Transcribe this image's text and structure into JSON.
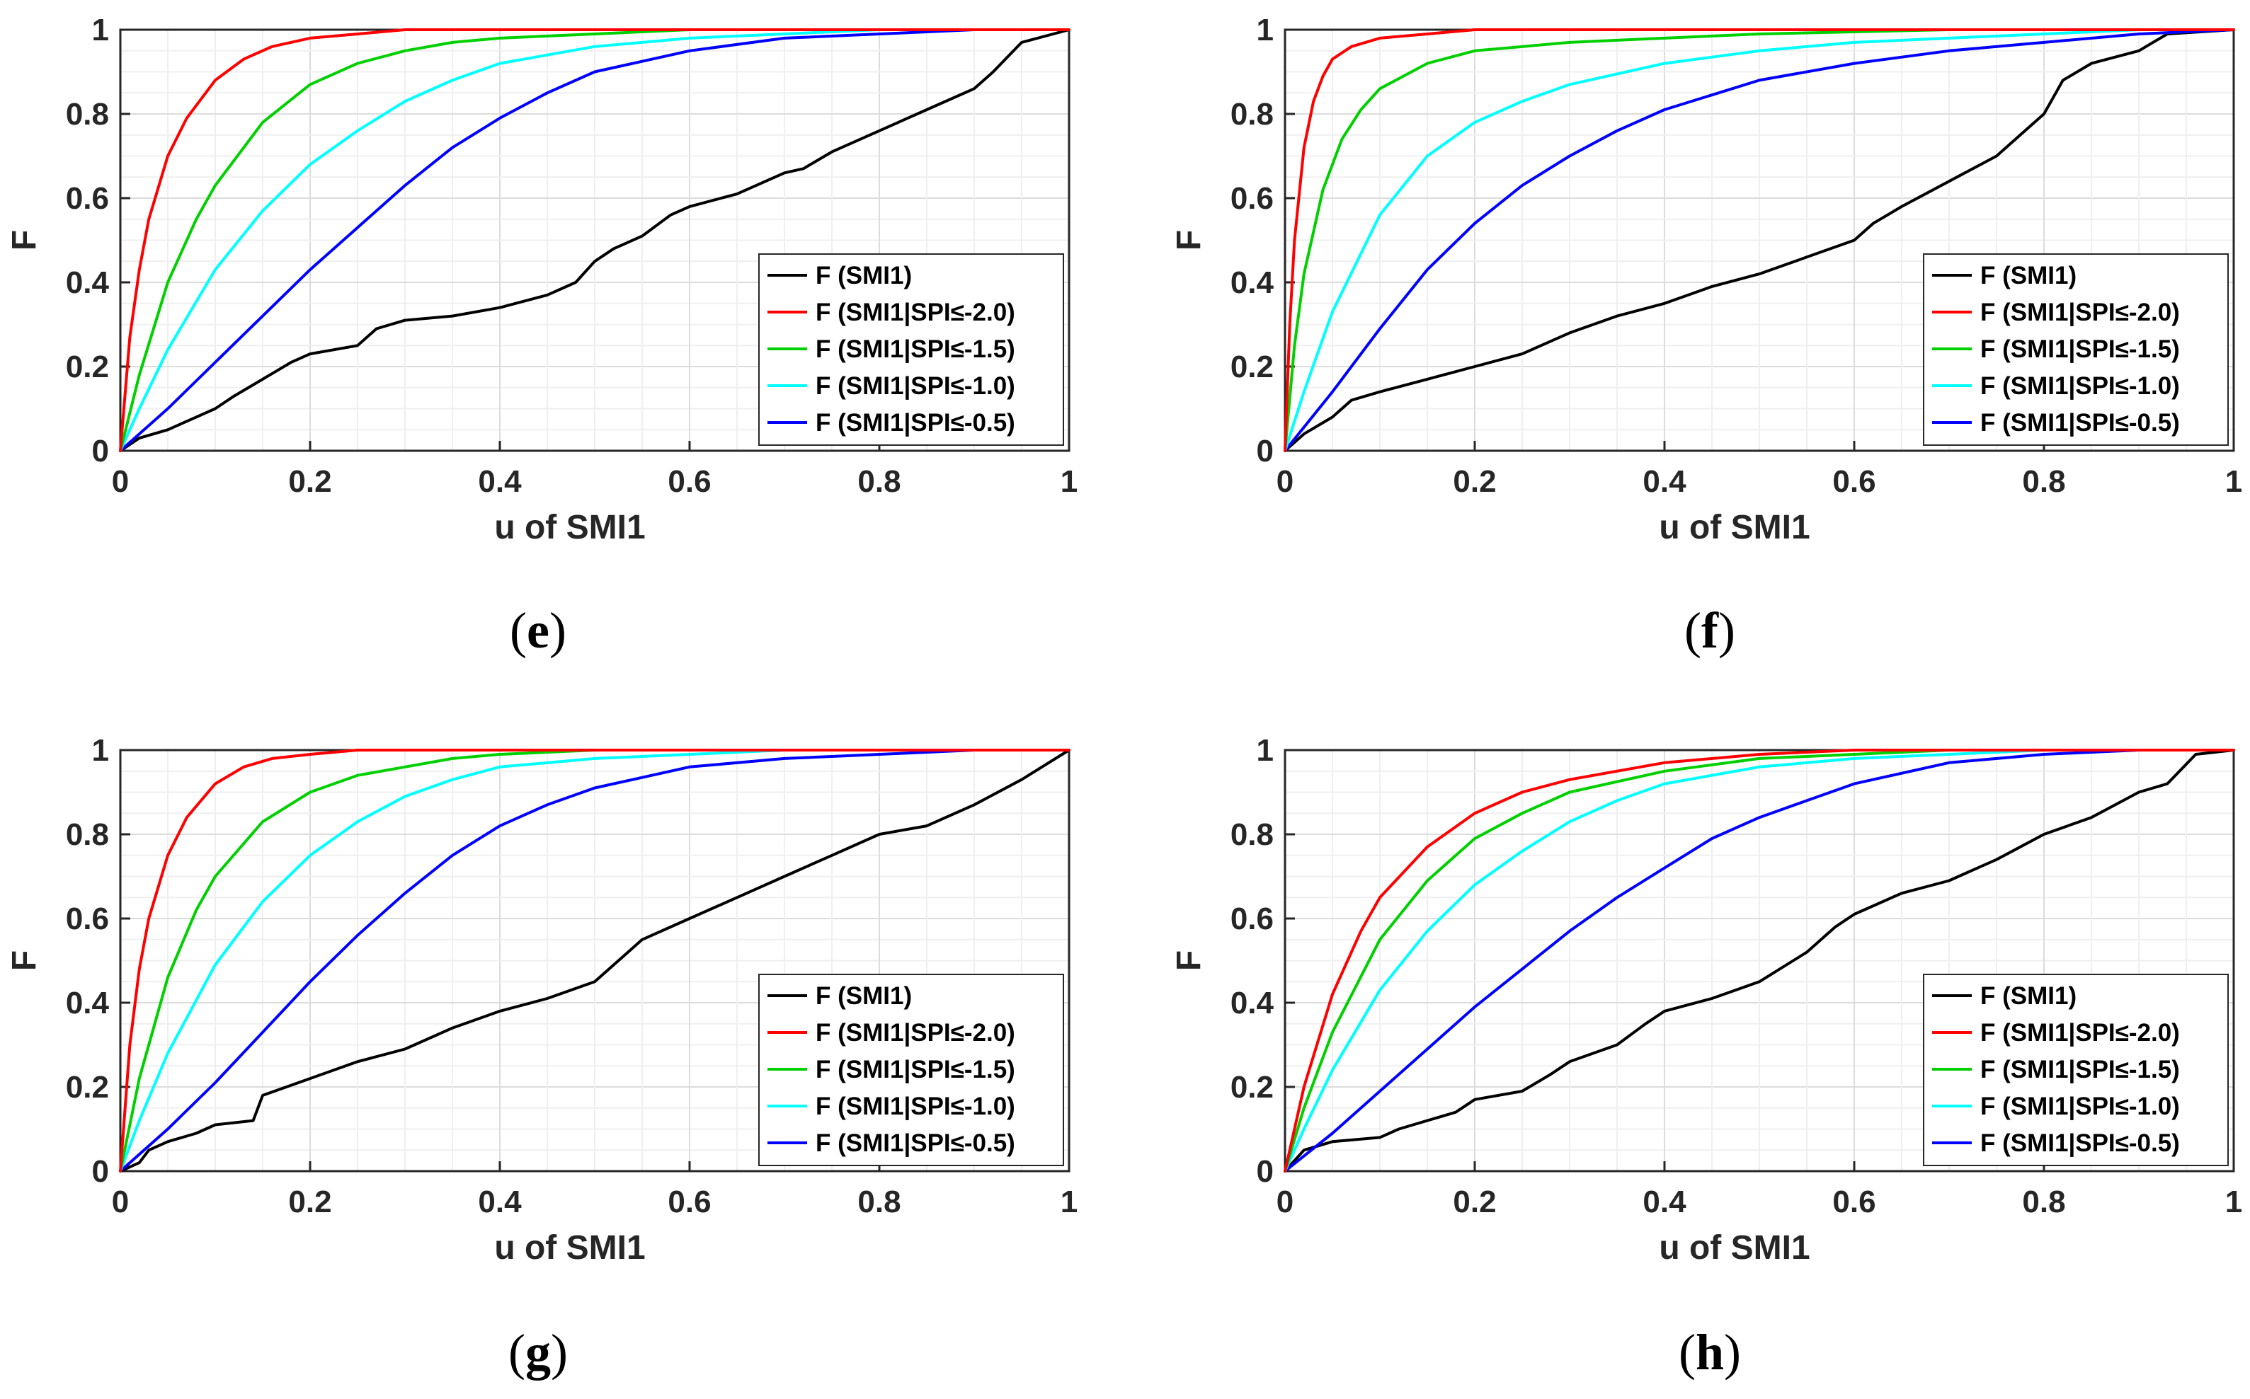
{
  "figure": {
    "panel_captions": [
      "(e)",
      "(f)",
      "(g)",
      "(h)"
    ],
    "colors": {
      "F (SMI1)": "#000000",
      "F (SMI1|SPI≤-2.0)": "#ff0000",
      "F (SMI1|SPI≤-1.5)": "#00d000",
      "F (SMI1|SPI≤-1.0)": "#00ffff",
      "F (SMI1|SPI≤-0.5)": "#0000ff",
      "grid": "#e6e6e6",
      "axis": "#262626"
    }
  },
  "chart_data": [
    {
      "type": "line",
      "panel": "e",
      "caption_letter": "e",
      "xlabel": "u of SMI1",
      "ylabel": "F",
      "xlim": [
        0,
        1
      ],
      "ylim": [
        0,
        1
      ],
      "xticks": [
        "0",
        "0.2",
        "0.4",
        "0.6",
        "0.8",
        "1"
      ],
      "yticks": [
        "0",
        "0.2",
        "0.4",
        "0.6",
        "0.8",
        "1"
      ],
      "grid": true,
      "legend_position": "lower-right",
      "series": [
        {
          "name": "F (SMI1)",
          "x": [
            0,
            0.02,
            0.05,
            0.08,
            0.1,
            0.12,
            0.15,
            0.18,
            0.2,
            0.25,
            0.27,
            0.3,
            0.35,
            0.4,
            0.45,
            0.48,
            0.5,
            0.52,
            0.55,
            0.58,
            0.6,
            0.65,
            0.7,
            0.72,
            0.75,
            0.8,
            0.85,
            0.9,
            0.92,
            0.95,
            1
          ],
          "y": [
            0,
            0.03,
            0.05,
            0.08,
            0.1,
            0.13,
            0.17,
            0.21,
            0.23,
            0.25,
            0.29,
            0.31,
            0.32,
            0.34,
            0.37,
            0.4,
            0.45,
            0.48,
            0.51,
            0.56,
            0.58,
            0.61,
            0.66,
            0.67,
            0.71,
            0.76,
            0.81,
            0.86,
            0.9,
            0.97,
            1
          ]
        },
        {
          "name": "F (SMI1|SPI≤-2.0)",
          "x": [
            0,
            0.01,
            0.02,
            0.03,
            0.05,
            0.07,
            0.1,
            0.13,
            0.16,
            0.2,
            0.25,
            0.3,
            0.4,
            0.5,
            1
          ],
          "y": [
            0,
            0.27,
            0.43,
            0.55,
            0.7,
            0.79,
            0.88,
            0.93,
            0.96,
            0.98,
            0.99,
            1,
            1,
            1,
            1
          ]
        },
        {
          "name": "F (SMI1|SPI≤-1.5)",
          "x": [
            0,
            0.02,
            0.05,
            0.08,
            0.1,
            0.15,
            0.2,
            0.25,
            0.3,
            0.35,
            0.4,
            0.5,
            0.6,
            1
          ],
          "y": [
            0,
            0.18,
            0.4,
            0.55,
            0.63,
            0.78,
            0.87,
            0.92,
            0.95,
            0.97,
            0.98,
            0.99,
            1,
            1
          ]
        },
        {
          "name": "F (SMI1|SPI≤-1.0)",
          "x": [
            0,
            0.02,
            0.05,
            0.1,
            0.15,
            0.2,
            0.25,
            0.3,
            0.35,
            0.4,
            0.5,
            0.6,
            0.7,
            0.8,
            1
          ],
          "y": [
            0,
            0.1,
            0.24,
            0.43,
            0.57,
            0.68,
            0.76,
            0.83,
            0.88,
            0.92,
            0.96,
            0.98,
            0.99,
            1,
            1
          ]
        },
        {
          "name": "F (SMI1|SPI≤-0.5)",
          "x": [
            0,
            0.05,
            0.1,
            0.15,
            0.2,
            0.25,
            0.3,
            0.35,
            0.4,
            0.45,
            0.5,
            0.6,
            0.7,
            0.8,
            0.9,
            1
          ],
          "y": [
            0,
            0.1,
            0.21,
            0.32,
            0.43,
            0.53,
            0.63,
            0.72,
            0.79,
            0.85,
            0.9,
            0.95,
            0.98,
            0.99,
            1,
            1
          ]
        }
      ]
    },
    {
      "type": "line",
      "panel": "f",
      "caption_letter": "f",
      "xlabel": "u of SMI1",
      "ylabel": "F",
      "xlim": [
        0,
        1
      ],
      "ylim": [
        0,
        1
      ],
      "xticks": [
        "0",
        "0.2",
        "0.4",
        "0.6",
        "0.8",
        "1"
      ],
      "yticks": [
        "0",
        "0.2",
        "0.4",
        "0.6",
        "0.8",
        "1"
      ],
      "grid": true,
      "legend_position": "lower-right",
      "series": [
        {
          "name": "F (SMI1)",
          "x": [
            0,
            0.02,
            0.05,
            0.07,
            0.1,
            0.15,
            0.2,
            0.25,
            0.3,
            0.35,
            0.4,
            0.45,
            0.5,
            0.55,
            0.6,
            0.62,
            0.65,
            0.7,
            0.75,
            0.78,
            0.8,
            0.82,
            0.85,
            0.9,
            0.93,
            1
          ],
          "y": [
            0,
            0.04,
            0.08,
            0.12,
            0.14,
            0.17,
            0.2,
            0.23,
            0.28,
            0.32,
            0.35,
            0.39,
            0.42,
            0.46,
            0.5,
            0.54,
            0.58,
            0.64,
            0.7,
            0.76,
            0.8,
            0.88,
            0.92,
            0.95,
            0.99,
            1
          ]
        },
        {
          "name": "F (SMI1|SPI≤-2.0)",
          "x": [
            0,
            0.005,
            0.01,
            0.02,
            0.03,
            0.04,
            0.05,
            0.07,
            0.1,
            0.15,
            0.2,
            0.3,
            1
          ],
          "y": [
            0,
            0.3,
            0.5,
            0.72,
            0.83,
            0.89,
            0.93,
            0.96,
            0.98,
            0.99,
            1,
            1,
            1
          ]
        },
        {
          "name": "F (SMI1|SPI≤-1.5)",
          "x": [
            0,
            0.01,
            0.02,
            0.04,
            0.06,
            0.08,
            0.1,
            0.15,
            0.2,
            0.3,
            0.4,
            0.5,
            0.7,
            1
          ],
          "y": [
            0,
            0.25,
            0.42,
            0.62,
            0.74,
            0.81,
            0.86,
            0.92,
            0.95,
            0.97,
            0.98,
            0.99,
            1,
            1
          ]
        },
        {
          "name": "F (SMI1|SPI≤-1.0)",
          "x": [
            0,
            0.02,
            0.05,
            0.1,
            0.15,
            0.2,
            0.25,
            0.3,
            0.4,
            0.5,
            0.6,
            0.7,
            0.8,
            0.9,
            1
          ],
          "y": [
            0,
            0.14,
            0.33,
            0.56,
            0.7,
            0.78,
            0.83,
            0.87,
            0.92,
            0.95,
            0.97,
            0.98,
            0.99,
            1,
            1
          ]
        },
        {
          "name": "F (SMI1|SPI≤-0.5)",
          "x": [
            0,
            0.05,
            0.1,
            0.15,
            0.2,
            0.25,
            0.3,
            0.35,
            0.4,
            0.5,
            0.6,
            0.7,
            0.8,
            0.9,
            1
          ],
          "y": [
            0,
            0.14,
            0.29,
            0.43,
            0.54,
            0.63,
            0.7,
            0.76,
            0.81,
            0.88,
            0.92,
            0.95,
            0.97,
            0.99,
            1
          ]
        }
      ]
    },
    {
      "type": "line",
      "panel": "g",
      "caption_letter": "g",
      "xlabel": "u of SMI1",
      "ylabel": "F",
      "xlim": [
        0,
        1
      ],
      "ylim": [
        0,
        1
      ],
      "xticks": [
        "0",
        "0.2",
        "0.4",
        "0.6",
        "0.8",
        "1"
      ],
      "yticks": [
        "0",
        "0.2",
        "0.4",
        "0.6",
        "0.8",
        "1"
      ],
      "grid": true,
      "legend_position": "lower-right",
      "series": [
        {
          "name": "F (SMI1)",
          "x": [
            0,
            0.02,
            0.03,
            0.05,
            0.08,
            0.1,
            0.14,
            0.15,
            0.2,
            0.25,
            0.3,
            0.35,
            0.4,
            0.45,
            0.5,
            0.52,
            0.55,
            0.6,
            0.65,
            0.7,
            0.75,
            0.8,
            0.85,
            0.9,
            0.95,
            1
          ],
          "y": [
            0,
            0.02,
            0.05,
            0.07,
            0.09,
            0.11,
            0.12,
            0.18,
            0.22,
            0.26,
            0.29,
            0.34,
            0.38,
            0.41,
            0.45,
            0.49,
            0.55,
            0.6,
            0.65,
            0.7,
            0.75,
            0.8,
            0.82,
            0.87,
            0.93,
            1
          ]
        },
        {
          "name": "F (SMI1|SPI≤-2.0)",
          "x": [
            0,
            0.01,
            0.02,
            0.03,
            0.05,
            0.07,
            0.1,
            0.13,
            0.16,
            0.2,
            0.25,
            0.3,
            0.4,
            1
          ],
          "y": [
            0,
            0.3,
            0.48,
            0.6,
            0.75,
            0.84,
            0.92,
            0.96,
            0.98,
            0.99,
            1,
            1,
            1,
            1
          ]
        },
        {
          "name": "F (SMI1|SPI≤-1.5)",
          "x": [
            0,
            0.02,
            0.05,
            0.08,
            0.1,
            0.15,
            0.2,
            0.25,
            0.3,
            0.35,
            0.4,
            0.5,
            0.6,
            1
          ],
          "y": [
            0,
            0.22,
            0.46,
            0.62,
            0.7,
            0.83,
            0.9,
            0.94,
            0.96,
            0.98,
            0.99,
            1,
            1,
            1
          ]
        },
        {
          "name": "F (SMI1|SPI≤-1.0)",
          "x": [
            0,
            0.02,
            0.05,
            0.1,
            0.15,
            0.2,
            0.25,
            0.3,
            0.35,
            0.4,
            0.5,
            0.6,
            0.7,
            1
          ],
          "y": [
            0,
            0.12,
            0.28,
            0.49,
            0.64,
            0.75,
            0.83,
            0.89,
            0.93,
            0.96,
            0.98,
            0.99,
            1,
            1
          ]
        },
        {
          "name": "F (SMI1|SPI≤-0.5)",
          "x": [
            0,
            0.05,
            0.1,
            0.15,
            0.2,
            0.25,
            0.3,
            0.35,
            0.4,
            0.45,
            0.5,
            0.6,
            0.7,
            0.8,
            0.9,
            1
          ],
          "y": [
            0,
            0.1,
            0.21,
            0.33,
            0.45,
            0.56,
            0.66,
            0.75,
            0.82,
            0.87,
            0.91,
            0.96,
            0.98,
            0.99,
            1,
            1
          ]
        }
      ]
    },
    {
      "type": "line",
      "panel": "h",
      "caption_letter": "h",
      "xlabel": "u of SMI1",
      "ylabel": "F",
      "xlim": [
        0,
        1
      ],
      "ylim": [
        0,
        1
      ],
      "xticks": [
        "0",
        "0.2",
        "0.4",
        "0.6",
        "0.8",
        "1"
      ],
      "yticks": [
        "0",
        "0.2",
        "0.4",
        "0.6",
        "0.8",
        "1"
      ],
      "grid": true,
      "legend_position": "lower-right",
      "series": [
        {
          "name": "F (SMI1)",
          "x": [
            0,
            0.02,
            0.05,
            0.1,
            0.12,
            0.15,
            0.18,
            0.2,
            0.25,
            0.28,
            0.3,
            0.35,
            0.38,
            0.4,
            0.45,
            0.5,
            0.55,
            0.58,
            0.6,
            0.65,
            0.7,
            0.72,
            0.75,
            0.8,
            0.85,
            0.9,
            0.93,
            0.96,
            1
          ],
          "y": [
            0,
            0.05,
            0.07,
            0.08,
            0.1,
            0.12,
            0.14,
            0.17,
            0.19,
            0.23,
            0.26,
            0.3,
            0.35,
            0.38,
            0.41,
            0.45,
            0.52,
            0.58,
            0.61,
            0.66,
            0.69,
            0.71,
            0.74,
            0.8,
            0.84,
            0.9,
            0.92,
            0.99,
            1
          ]
        },
        {
          "name": "F (SMI1|SPI≤-2.0)",
          "x": [
            0,
            0.02,
            0.05,
            0.08,
            0.1,
            0.15,
            0.2,
            0.25,
            0.3,
            0.4,
            0.5,
            0.6,
            0.7,
            0.8,
            1
          ],
          "y": [
            0,
            0.2,
            0.42,
            0.57,
            0.65,
            0.77,
            0.85,
            0.9,
            0.93,
            0.97,
            0.99,
            1,
            1,
            1,
            1
          ]
        },
        {
          "name": "F (SMI1|SPI≤-1.5)",
          "x": [
            0,
            0.02,
            0.05,
            0.1,
            0.15,
            0.2,
            0.25,
            0.3,
            0.4,
            0.5,
            0.6,
            0.7,
            0.8,
            1
          ],
          "y": [
            0,
            0.15,
            0.33,
            0.55,
            0.69,
            0.79,
            0.85,
            0.9,
            0.95,
            0.98,
            0.99,
            1,
            1,
            1
          ]
        },
        {
          "name": "F (SMI1|SPI≤-1.0)",
          "x": [
            0,
            0.02,
            0.05,
            0.1,
            0.15,
            0.2,
            0.25,
            0.3,
            0.35,
            0.4,
            0.5,
            0.6,
            0.7,
            0.8,
            1
          ],
          "y": [
            0,
            0.1,
            0.24,
            0.43,
            0.57,
            0.68,
            0.76,
            0.83,
            0.88,
            0.92,
            0.96,
            0.98,
            0.99,
            1,
            1
          ]
        },
        {
          "name": "F (SMI1|SPI≤-0.5)",
          "x": [
            0,
            0.05,
            0.1,
            0.15,
            0.2,
            0.25,
            0.3,
            0.35,
            0.4,
            0.45,
            0.5,
            0.6,
            0.7,
            0.8,
            0.9,
            1
          ],
          "y": [
            0,
            0.09,
            0.19,
            0.29,
            0.39,
            0.48,
            0.57,
            0.65,
            0.72,
            0.79,
            0.84,
            0.92,
            0.97,
            0.99,
            1,
            1
          ]
        }
      ]
    }
  ]
}
